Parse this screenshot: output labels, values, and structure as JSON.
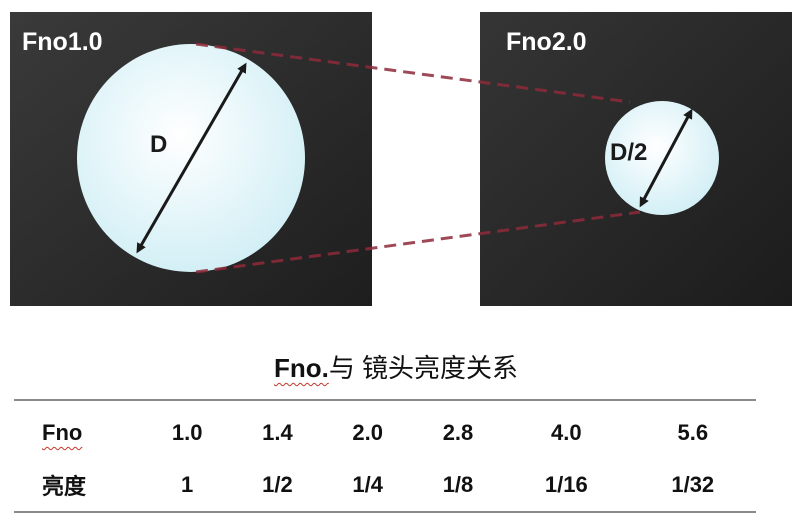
{
  "panels": {
    "left_label": "Fno1.0",
    "right_label": "Fno2.0",
    "left_diameter_label": "D",
    "right_diameter_label": "D/2"
  },
  "table": {
    "title_latin": "Fno.",
    "title_cjk": "与 镜头亮度关系",
    "rows": [
      {
        "header": "Fno",
        "values": [
          "1.0",
          "1.4",
          "2.0",
          "2.8",
          "4.0",
          "5.6"
        ]
      },
      {
        "header": "亮度",
        "values": [
          "1",
          "1/2",
          "1/4",
          "1/8",
          "1/16",
          "1/32"
        ]
      }
    ]
  },
  "colors": {
    "panel_background": "#2b2b2b",
    "aperture_fill": "#dff7fb",
    "projection_line": "#8e2a3a",
    "rule": "#8a8a8a"
  }
}
